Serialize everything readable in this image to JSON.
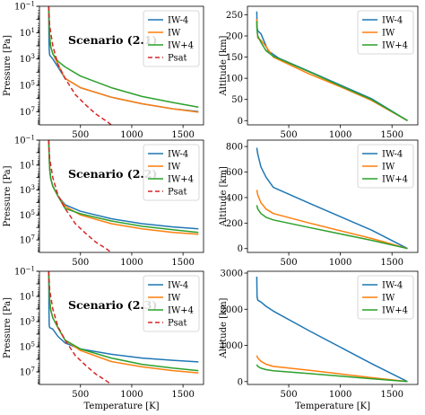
{
  "chart_data": [
    {
      "type": "line",
      "panel": "scenario-2.1-pressure",
      "annotation": "Scenario (2.1)",
      "xlabel": "",
      "ylabel": "Pressure [Pa]",
      "xlim": [
        100,
        1700
      ],
      "ylim": [
        0.1,
        100000000
      ],
      "yscale": "log",
      "yinverted": true,
      "xticks": [
        500,
        1000,
        1500
      ],
      "yticks": [
        {
          "v": 0.1,
          "base": "10",
          "exp": "−1"
        },
        {
          "v": 10,
          "base": "10",
          "exp": "1"
        },
        {
          "v": 1000,
          "base": "10",
          "exp": "3"
        },
        {
          "v": 100000,
          "base": "10",
          "exp": "5"
        },
        {
          "v": 10000000,
          "base": "10",
          "exp": "7"
        }
      ],
      "legend": "top-right",
      "series": [
        {
          "name": "IW-4",
          "color": "#1f77b4",
          "dash": "",
          "x": [
            190,
            191,
            192,
            193,
            195,
            200,
            230,
            280,
            350,
            500,
            800,
            1100,
            1400,
            1650
          ],
          "y": [
            0.1,
            0.5,
            5,
            30,
            200,
            500,
            1000,
            4000,
            30000,
            150000,
            800000,
            2500000,
            6000000,
            10000000
          ]
        },
        {
          "name": "IW",
          "color": "#ff7f0e",
          "dash": "",
          "x": [
            190,
            195,
            200,
            210,
            230,
            280,
            350,
            500,
            800,
            1100,
            1400,
            1650
          ],
          "y": [
            0.1,
            2,
            20,
            120,
            400,
            2500,
            30000,
            150000,
            800000,
            2500000,
            6000000,
            11000000
          ]
        },
        {
          "name": "IW+4",
          "color": "#2ca02c",
          "dash": "",
          "x": [
            190,
            195,
            200,
            210,
            230,
            280,
            350,
            500,
            800,
            1100,
            1400,
            1650
          ],
          "y": [
            0.1,
            2,
            20,
            120,
            400,
            1500,
            4000,
            20000,
            150000,
            700000,
            2000000,
            4500000
          ]
        },
        {
          "name": "Psat",
          "color": "#d62728",
          "dash": "5,3",
          "x": [
            190,
            200,
            230,
            280,
            350,
            450,
            550,
            650,
            750,
            800
          ],
          "y": [
            0.1,
            3,
            100,
            2500,
            30000,
            500000,
            3000000,
            15000000,
            50000000,
            100000000
          ]
        }
      ]
    },
    {
      "type": "line",
      "panel": "scenario-2.1-altitude",
      "xlabel": "",
      "ylabel": "Altitude [km]",
      "xlim": [
        100,
        1750
      ],
      "ylim": [
        -10,
        270
      ],
      "xticks": [
        500,
        1000,
        1500
      ],
      "yticks": [
        0,
        50,
        100,
        150,
        200,
        250
      ],
      "legend": "top-right",
      "series": [
        {
          "name": "IW-4",
          "color": "#1f77b4",
          "dash": "",
          "x": [
            190,
            191,
            192,
            195,
            200,
            230,
            300,
            400,
            700,
            1000,
            1300,
            1650
          ],
          "y": [
            258,
            245,
            230,
            218,
            212,
            205,
            165,
            148,
            116,
            84,
            52,
            0
          ]
        },
        {
          "name": "IW",
          "color": "#ff7f0e",
          "dash": "",
          "x": [
            190,
            192,
            200,
            230,
            280,
            350,
            700,
            1000,
            1300,
            1650
          ],
          "y": [
            240,
            220,
            195,
            190,
            175,
            150,
            110,
            80,
            48,
            0
          ]
        },
        {
          "name": "IW+4",
          "color": "#2ca02c",
          "dash": "",
          "x": [
            190,
            192,
            200,
            230,
            280,
            350,
            700,
            1000,
            1300,
            1650
          ],
          "y": [
            235,
            215,
            200,
            185,
            165,
            152,
            115,
            82,
            50,
            0
          ]
        }
      ]
    },
    {
      "type": "line",
      "panel": "scenario-2.2-pressure",
      "annotation": "Scenario (2.2)",
      "xlabel": "",
      "ylabel": "Pressure [Pa]",
      "xlim": [
        100,
        1700
      ],
      "ylim": [
        0.1,
        100000000
      ],
      "yscale": "log",
      "yinverted": true,
      "xticks": [
        500,
        1000,
        1500
      ],
      "yticks": [
        {
          "v": 0.1,
          "base": "10",
          "exp": "−1"
        },
        {
          "v": 10,
          "base": "10",
          "exp": "1"
        },
        {
          "v": 1000,
          "base": "10",
          "exp": "3"
        },
        {
          "v": 100000,
          "base": "10",
          "exp": "5"
        },
        {
          "v": 10000000,
          "base": "10",
          "exp": "7"
        }
      ],
      "legend": "top-right",
      "series": [
        {
          "name": "IW-4",
          "color": "#1f77b4",
          "dash": "",
          "x": [
            190,
            195,
            200,
            210,
            230,
            280,
            350,
            500,
            800,
            1100,
            1400,
            1650
          ],
          "y": [
            0.1,
            2,
            20,
            120,
            500,
            3000,
            15000,
            50000,
            200000,
            500000,
            900000,
            1300000
          ]
        },
        {
          "name": "IW",
          "color": "#ff7f0e",
          "dash": "",
          "x": [
            190,
            195,
            200,
            210,
            230,
            280,
            350,
            500,
            800,
            1100,
            1400,
            1650
          ],
          "y": [
            0.1,
            2,
            20,
            120,
            500,
            3000,
            20000,
            100000,
            500000,
            1300000,
            2500000,
            3500000
          ]
        },
        {
          "name": "IW+4",
          "color": "#2ca02c",
          "dash": "",
          "x": [
            190,
            195,
            200,
            210,
            230,
            280,
            350,
            500,
            800,
            1100,
            1400,
            1650
          ],
          "y": [
            0.1,
            2,
            20,
            120,
            500,
            3000,
            30000,
            80000,
            300000,
            800000,
            1500000,
            2500000
          ]
        },
        {
          "name": "Psat",
          "color": "#d62728",
          "dash": "5,3",
          "x": [
            190,
            200,
            230,
            280,
            350,
            450,
            550,
            650,
            750,
            800
          ],
          "y": [
            0.1,
            3,
            100,
            2500,
            30000,
            500000,
            3000000,
            15000000,
            50000000,
            100000000
          ]
        }
      ]
    },
    {
      "type": "line",
      "panel": "scenario-2.2-altitude",
      "xlabel": "",
      "ylabel": "Altitude [km]",
      "xlim": [
        100,
        1750
      ],
      "ylim": [
        -30,
        850
      ],
      "xticks": [
        500,
        1000,
        1500
      ],
      "yticks": [
        0,
        200,
        400,
        600,
        800
      ],
      "legend": "top-right",
      "series": [
        {
          "name": "IW-4",
          "color": "#1f77b4",
          "dash": "",
          "x": [
            190,
            200,
            230,
            280,
            350,
            700,
            1000,
            1300,
            1650
          ],
          "y": [
            790,
            740,
            640,
            560,
            480,
            355,
            250,
            145,
            0
          ]
        },
        {
          "name": "IW",
          "color": "#ff7f0e",
          "dash": "",
          "x": [
            190,
            200,
            230,
            280,
            350,
            700,
            1000,
            1300,
            1650
          ],
          "y": [
            460,
            420,
            360,
            310,
            275,
            200,
            140,
            80,
            0
          ]
        },
        {
          "name": "IW+4",
          "color": "#2ca02c",
          "dash": "",
          "x": [
            190,
            200,
            230,
            280,
            350,
            700,
            1000,
            1300,
            1650
          ],
          "y": [
            340,
            310,
            275,
            245,
            225,
            165,
            115,
            65,
            0
          ]
        }
      ]
    },
    {
      "type": "line",
      "panel": "scenario-2.3-pressure",
      "annotation": "Scenario (2.3)",
      "xlabel": "Temperature [K]",
      "ylabel": "Pressure [Pa]",
      "xlim": [
        100,
        1700
      ],
      "ylim": [
        0.1,
        100000000
      ],
      "yscale": "log",
      "yinverted": true,
      "xticks": [
        500,
        1000,
        1500
      ],
      "yticks": [
        {
          "v": 0.1,
          "base": "10",
          "exp": "−1"
        },
        {
          "v": 10,
          "base": "10",
          "exp": "1"
        },
        {
          "v": 1000,
          "base": "10",
          "exp": "3"
        },
        {
          "v": 100000,
          "base": "10",
          "exp": "5"
        },
        {
          "v": 10000000,
          "base": "10",
          "exp": "7"
        }
      ],
      "legend": "top-right",
      "series": [
        {
          "name": "IW-4",
          "color": "#1f77b4",
          "dash": "",
          "x": [
            190,
            191,
            192,
            193,
            195,
            200,
            230,
            280,
            350,
            500,
            800,
            1100,
            1400,
            1650
          ],
          "y": [
            0.1,
            0.5,
            5,
            100,
            2000,
            3000,
            4000,
            15000,
            50000,
            150000,
            400000,
            800000,
            1200000,
            1600000
          ]
        },
        {
          "name": "IW",
          "color": "#ff7f0e",
          "dash": "",
          "x": [
            190,
            195,
            200,
            210,
            230,
            280,
            350,
            500,
            800,
            1100,
            1400,
            1650
          ],
          "y": [
            0.1,
            2,
            20,
            120,
            500,
            3000,
            30000,
            200000,
            1500000,
            4000000,
            8000000,
            12000000
          ]
        },
        {
          "name": "IW+4",
          "color": "#2ca02c",
          "dash": "",
          "x": [
            190,
            195,
            200,
            210,
            230,
            280,
            350,
            500,
            800,
            1100,
            1400,
            1650
          ],
          "y": [
            0.1,
            2,
            20,
            120,
            500,
            3000,
            30000,
            150000,
            800000,
            2500000,
            5000000,
            8000000
          ]
        },
        {
          "name": "Psat",
          "color": "#d62728",
          "dash": "5,3",
          "x": [
            190,
            200,
            230,
            280,
            350,
            450,
            550,
            650,
            750,
            800
          ],
          "y": [
            0.1,
            3,
            100,
            2500,
            30000,
            500000,
            3000000,
            15000000,
            50000000,
            100000000
          ]
        }
      ]
    },
    {
      "type": "line",
      "panel": "scenario-2.3-altitude",
      "xlabel": "Temperature [K]",
      "ylabel": "Altitude [km]",
      "xlim": [
        100,
        1750
      ],
      "ylim": [
        -80,
        3050
      ],
      "xticks": [
        500,
        1000,
        1500
      ],
      "yticks": [
        0,
        1000,
        2000,
        3000
      ],
      "legend": "top-right",
      "series": [
        {
          "name": "IW-4",
          "color": "#1f77b4",
          "dash": "",
          "x": [
            190,
            191,
            193,
            200,
            230,
            280,
            350,
            700,
            1000,
            1300,
            1650
          ],
          "y": [
            2900,
            2700,
            2350,
            2250,
            2200,
            2080,
            1950,
            1400,
            950,
            500,
            0
          ]
        },
        {
          "name": "IW",
          "color": "#ff7f0e",
          "dash": "",
          "x": [
            190,
            200,
            230,
            280,
            350,
            700,
            1000,
            1300,
            1650
          ],
          "y": [
            720,
            650,
            560,
            480,
            420,
            310,
            210,
            110,
            0
          ]
        },
        {
          "name": "IW+4",
          "color": "#2ca02c",
          "dash": "",
          "x": [
            190,
            200,
            230,
            280,
            350,
            700,
            1000,
            1300,
            1650
          ],
          "y": [
            470,
            420,
            370,
            330,
            300,
            220,
            150,
            80,
            0
          ]
        }
      ]
    }
  ]
}
